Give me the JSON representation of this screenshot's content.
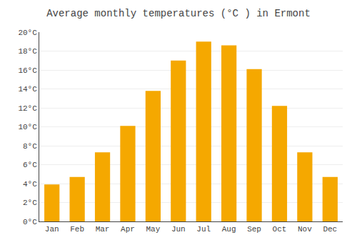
{
  "chart_data": {
    "type": "bar",
    "title": "Average monthly temperatures (°C ) in Ermont",
    "categories": [
      "Jan",
      "Feb",
      "Mar",
      "Apr",
      "May",
      "Jun",
      "Jul",
      "Aug",
      "Sep",
      "Oct",
      "Nov",
      "Dec"
    ],
    "values": [
      3.9,
      4.7,
      7.3,
      10.1,
      13.8,
      17.0,
      19.0,
      18.6,
      16.1,
      12.2,
      7.3,
      4.7
    ],
    "color": "#F5A800",
    "ylim": [
      0,
      20
    ],
    "yticks": [
      {
        "value": 0,
        "label": "0°C"
      },
      {
        "value": 2,
        "label": "2°C"
      },
      {
        "value": 4,
        "label": "4°C"
      },
      {
        "value": 6,
        "label": "6°C"
      },
      {
        "value": 8,
        "label": "8°C"
      },
      {
        "value": 10,
        "label": "10°C"
      },
      {
        "value": 12,
        "label": "12°C"
      },
      {
        "value": 14,
        "label": "14°C"
      },
      {
        "value": 16,
        "label": "16°C"
      },
      {
        "value": 18,
        "label": "18°C"
      },
      {
        "value": 20,
        "label": "20°C"
      }
    ],
    "grid": true
  }
}
